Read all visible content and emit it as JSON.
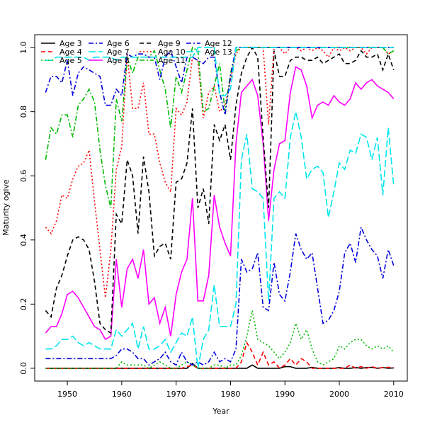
{
  "chart_data": {
    "type": "line",
    "xlabel": "Year",
    "ylabel": "Maturity ogive",
    "xlim": [
      1944,
      2012.5
    ],
    "ylim": [
      -0.04,
      1.04
    ],
    "xticks": [
      1950,
      1960,
      1970,
      1980,
      1990,
      2000,
      2010
    ],
    "yticks": [
      0.0,
      0.2,
      0.4,
      0.6,
      0.8,
      1.0
    ],
    "grid": false,
    "legend_position": "top-left",
    "x": [
      1946,
      1947,
      1948,
      1949,
      1950,
      1951,
      1952,
      1953,
      1954,
      1955,
      1956,
      1957,
      1958,
      1959,
      1960,
      1961,
      1962,
      1963,
      1964,
      1965,
      1966,
      1967,
      1968,
      1969,
      1970,
      1971,
      1972,
      1973,
      1974,
      1975,
      1976,
      1977,
      1978,
      1979,
      1980,
      1981,
      1982,
      1983,
      1984,
      1985,
      1986,
      1987,
      1988,
      1989,
      1990,
      1991,
      1992,
      1993,
      1994,
      1995,
      1996,
      1997,
      1998,
      1999,
      2000,
      2001,
      2002,
      2003,
      2004,
      2005,
      2006,
      2007,
      2008,
      2009,
      2010
    ],
    "series": [
      {
        "name": "Age 3",
        "color": "#000000",
        "dash": "solid",
        "values": [
          0,
          0,
          0,
          0,
          0,
          0,
          0,
          0,
          0,
          0,
          0,
          0,
          0,
          0,
          0,
          0,
          0,
          0,
          0,
          0,
          0,
          0,
          0,
          0,
          0,
          0,
          0,
          0.015,
          0,
          0,
          0,
          0,
          0,
          0,
          0,
          0,
          0,
          0,
          0.01,
          0,
          0,
          0,
          0,
          0,
          0.005,
          0.005,
          0,
          0,
          0,
          0.003,
          0,
          0,
          0,
          0,
          0.002,
          0,
          0,
          0.002,
          0,
          0.002,
          0.003,
          0,
          0.002,
          0,
          0.001
        ]
      },
      {
        "name": "Age 4",
        "color": "#ff0000",
        "dash": "dashed",
        "values": [
          0,
          0,
          0,
          0,
          0,
          0,
          0,
          0,
          0,
          0,
          0,
          0,
          0,
          0,
          0,
          0,
          0,
          0,
          0,
          0,
          0,
          0,
          0,
          0,
          0,
          0,
          0.005,
          0.01,
          0,
          0,
          0,
          0,
          0,
          0,
          0,
          0,
          0.02,
          0.08,
          0.05,
          0.01,
          0.05,
          0.01,
          0.02,
          0,
          0.01,
          0.03,
          0.01,
          0.03,
          0.02,
          0,
          0,
          0,
          0,
          0,
          0,
          0,
          0.01,
          0,
          0.005,
          0,
          0.005,
          0,
          0.002,
          0.003,
          0.002
        ]
      },
      {
        "name": "Age 5",
        "color": "#00bb00",
        "dash": "dotted",
        "values": [
          0,
          0,
          0,
          0,
          0,
          0,
          0,
          0,
          0,
          0,
          0,
          0,
          0,
          0,
          0.02,
          0.01,
          0.01,
          0.01,
          0.01,
          0,
          0.01,
          0.02,
          0.01,
          0,
          0,
          0.01,
          0.02,
          0.01,
          0,
          0,
          0,
          0.01,
          0.01,
          0,
          0.01,
          0.01,
          0.04,
          0.1,
          0.18,
          0.09,
          0.08,
          0.07,
          0.05,
          0.03,
          0.05,
          0.08,
          0.14,
          0.09,
          0.12,
          0.06,
          0.02,
          0.01,
          0.02,
          0.03,
          0.07,
          0.06,
          0.08,
          0.09,
          0.09,
          0.07,
          0.06,
          0.07,
          0.06,
          0.07,
          0.05
        ]
      },
      {
        "name": "Age 6",
        "color": "#0000dd",
        "dash": "dashdot",
        "values": [
          0.03,
          0.03,
          0.03,
          0.03,
          0.03,
          0.03,
          0.03,
          0.03,
          0.03,
          0.03,
          0.03,
          0.03,
          0.03,
          0.04,
          0.06,
          0.06,
          0.05,
          0.03,
          0.03,
          0.01,
          0.02,
          0.03,
          0.05,
          0.02,
          0.01,
          0.05,
          0.02,
          0.01,
          0.02,
          0.01,
          0.02,
          0.05,
          0.02,
          0.03,
          0.02,
          0.06,
          0.34,
          0.3,
          0.31,
          0.36,
          0.19,
          0.18,
          0.33,
          0.23,
          0.21,
          0.3,
          0.42,
          0.37,
          0.34,
          0.36,
          0.25,
          0.14,
          0.15,
          0.18,
          0.24,
          0.36,
          0.39,
          0.33,
          0.44,
          0.4,
          0.37,
          0.35,
          0.28,
          0.37,
          0.32
        ]
      },
      {
        "name": "Age 7",
        "color": "#00e5ee",
        "dash": "longdash",
        "values": [
          0.06,
          0.06,
          0.07,
          0.09,
          0.09,
          0.1,
          0.08,
          0.07,
          0.08,
          0.07,
          0.06,
          0.06,
          0.06,
          0.12,
          0.1,
          0.12,
          0.14,
          0.06,
          0.13,
          0.06,
          0.06,
          0.07,
          0.09,
          0.05,
          0.08,
          0.11,
          0.1,
          0.16,
          0,
          0.09,
          0.12,
          0.26,
          0.13,
          0.13,
          0.13,
          0.2,
          0.65,
          0.73,
          0.56,
          0.55,
          0.53,
          0.21,
          0.53,
          0.55,
          0.53,
          0.72,
          0.8,
          0.72,
          0.59,
          0.62,
          0.63,
          0.61,
          0.47,
          0.55,
          0.64,
          0.62,
          0.68,
          0.67,
          0.73,
          0.72,
          0.65,
          0.72,
          0.54,
          0.75,
          0.57
        ]
      },
      {
        "name": "Age 8",
        "color": "#ff00ff",
        "dash": "solid",
        "values": [
          0.11,
          0.13,
          0.13,
          0.17,
          0.23,
          0.24,
          0.22,
          0.19,
          0.16,
          0.13,
          0.12,
          0.09,
          0.1,
          0.34,
          0.19,
          0.31,
          0.34,
          0.28,
          0.37,
          0.2,
          0.22,
          0.14,
          0.19,
          0.1,
          0.23,
          0.3,
          0.34,
          0.53,
          0.21,
          0.21,
          0.29,
          0.54,
          0.44,
          0.39,
          0.35,
          0.7,
          0.86,
          0.88,
          0.9,
          0.85,
          0.7,
          0.46,
          0.62,
          0.7,
          0.71,
          0.86,
          0.94,
          0.93,
          0.88,
          0.78,
          0.82,
          0.83,
          0.82,
          0.85,
          0.83,
          0.82,
          0.84,
          0.89,
          0.87,
          0.89,
          0.9,
          0.88,
          0.87,
          0.86,
          0.84
        ]
      },
      {
        "name": "Age 9",
        "color": "#000000",
        "dash": "dashed",
        "values": [
          0.18,
          0.16,
          0.25,
          0.29,
          0.35,
          0.4,
          0.41,
          0.4,
          0.37,
          0.27,
          0.14,
          0.12,
          0.11,
          0.48,
          0.45,
          0.65,
          0.6,
          0.42,
          0.66,
          0.55,
          0.35,
          0.38,
          0.39,
          0.34,
          0.58,
          0.59,
          0.64,
          0.81,
          0.5,
          0.56,
          0.45,
          0.76,
          0.71,
          0.76,
          0.65,
          0.82,
          0.92,
          0.97,
          1.0,
          0.97,
          0.72,
          0.5,
          0.99,
          0.91,
          0.91,
          0.96,
          0.97,
          0.97,
          0.96,
          0.96,
          0.97,
          0.95,
          0.96,
          0.97,
          0.98,
          0.95,
          0.95,
          0.96,
          0.99,
          0.97,
          0.97,
          0.98,
          0.93,
          0.98,
          0.93
        ]
      },
      {
        "name": "Age 10",
        "color": "#ff0000",
        "dash": "dotted",
        "values": [
          0.44,
          0.42,
          0.46,
          0.54,
          0.53,
          0.59,
          0.63,
          0.64,
          0.68,
          0.52,
          0.37,
          0.22,
          0.37,
          0.62,
          0.69,
          0.98,
          0.81,
          0.81,
          0.89,
          0.73,
          0.73,
          0.64,
          0.58,
          0.55,
          0.81,
          0.79,
          0.83,
          0.97,
          0.96,
          0.78,
          0.86,
          0.88,
          0.8,
          0.82,
          0.9,
          0.98,
          1.0,
          1.0,
          1.0,
          1.0,
          1.0,
          0.76,
          1.0,
          1.0,
          0.98,
          1.0,
          1.0,
          0.99,
          1.0,
          0.99,
          1.0,
          0.99,
          0.97,
          1.0,
          0.99,
          1.0,
          0.99,
          1.0,
          1.0,
          0.98,
          1.0,
          1.0,
          1.0,
          0.98,
          0.99
        ]
      },
      {
        "name": "Age 11",
        "color": "#00bb00",
        "dash": "dashdot",
        "values": [
          0.65,
          0.75,
          0.73,
          0.79,
          0.79,
          0.72,
          0.82,
          0.84,
          0.87,
          0.83,
          0.68,
          0.57,
          0.5,
          0.84,
          0.77,
          0.97,
          0.92,
          0.97,
          0.97,
          0.97,
          0.99,
          0.93,
          0.87,
          0.75,
          0.91,
          0.86,
          0.93,
          1.0,
          0.99,
          0.8,
          0.81,
          0.88,
          0.95,
          0.8,
          0.92,
          0.99,
          1.0,
          1.0,
          1.0,
          1.0,
          1.0,
          1.0,
          1.0,
          1.0,
          1.0,
          1.0,
          1.0,
          1.0,
          1.0,
          1.0,
          1.0,
          1.0,
          1.0,
          1.0,
          1.0,
          1.0,
          1.0,
          1.0,
          1.0,
          1.0,
          1.0,
          1.0,
          1.0,
          0.98,
          0.99
        ]
      },
      {
        "name": "Age 12",
        "color": "#0000dd",
        "dash": "dashdot",
        "values": [
          0.86,
          0.91,
          0.91,
          0.89,
          0.96,
          0.85,
          0.92,
          0.94,
          0.93,
          0.92,
          0.91,
          0.82,
          0.82,
          0.87,
          0.85,
          0.98,
          0.97,
          0.98,
          0.98,
          0.97,
          0.97,
          0.9,
          0.97,
          0.99,
          0.94,
          0.89,
          0.97,
          0.97,
          0.96,
          0.95,
          0.97,
          0.97,
          0.86,
          0.79,
          0.91,
          1.0,
          1.0,
          1.0,
          1.0,
          1.0,
          1.0,
          1.0,
          1.0,
          1.0,
          1.0,
          1.0,
          1.0,
          1.0,
          1.0,
          1.0,
          1.0,
          1.0,
          1.0,
          1.0,
          1.0,
          1.0,
          1.0,
          1.0,
          1.0,
          1.0,
          1.0,
          1.0,
          1.0,
          1.0,
          1.0
        ]
      },
      {
        "name": "Age 13",
        "color": "#00e5ee",
        "dash": "longdash",
        "values": [
          0.96,
          0.96,
          0.97,
          0.97,
          0.97,
          0.97,
          0.97,
          0.97,
          0.96,
          0.97,
          0.97,
          0.97,
          0.97,
          0.96,
          0.97,
          0.97,
          0.97,
          0.97,
          0.97,
          0.97,
          0.97,
          0.97,
          0.97,
          0.97,
          0.97,
          0.97,
          0.97,
          0.97,
          1.0,
          1.0,
          1.0,
          1.0,
          0.85,
          0.85,
          0.87,
          1.0,
          1.0,
          1.0,
          1.0,
          1.0,
          1.0,
          1.0,
          1.0,
          1.0,
          1.0,
          1.0,
          1.0,
          1.0,
          1.0,
          1.0,
          1.0,
          1.0,
          1.0,
          1.0,
          1.0,
          1.0,
          1.0,
          1.0,
          1.0,
          1.0,
          1.0,
          1.0,
          1.0,
          1.0,
          1.0
        ]
      }
    ]
  }
}
